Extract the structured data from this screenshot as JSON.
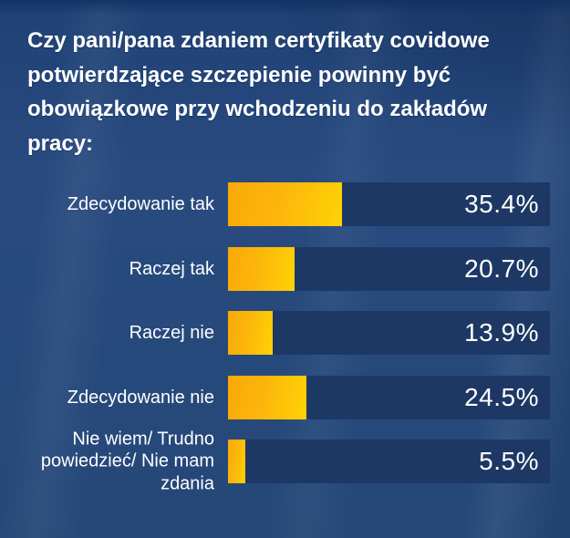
{
  "title": {
    "full": "Czy pani/pana zdaniem certyfikaty covidowe potwierdzające szczepienie powinny być obowiązkowe przy wchodzeniu do zakładów pracy:",
    "lines": [
      "Czy pani/pana zdaniem certyfikaty covidowe",
      "potwierdzające szczepienie powinny być",
      "obowiązkowe przy wchodzeniu do zakładów",
      "pracy:"
    ]
  },
  "chart_data": {
    "type": "bar",
    "orientation": "horizontal",
    "title": "Czy pani/pana zdaniem certyfikaty covidowe potwierdzające szczepienie powinny być obowiązkowe przy wchodzeniu do zakładów pracy:",
    "categories": [
      "Zdecydowanie tak",
      "Raczej tak",
      "Raczej nie",
      "Zdecydowanie nie",
      "Nie wiem/ Trudno powiedzieć/ Nie mam zdania"
    ],
    "values": [
      35.4,
      20.7,
      13.9,
      24.5,
      5.5
    ],
    "value_labels": [
      "35.4%",
      "20.7%",
      "13.9%",
      "24.5%",
      "5.5%"
    ],
    "unit": "%",
    "xlim": [
      0,
      100
    ],
    "grid": false,
    "legend": false,
    "colors": {
      "bar_gradient_start": "#f9a908",
      "bar_gradient_end": "#ffd205",
      "bar_track": "#1d3864",
      "background": "#254878",
      "text": "#ffffff"
    }
  }
}
